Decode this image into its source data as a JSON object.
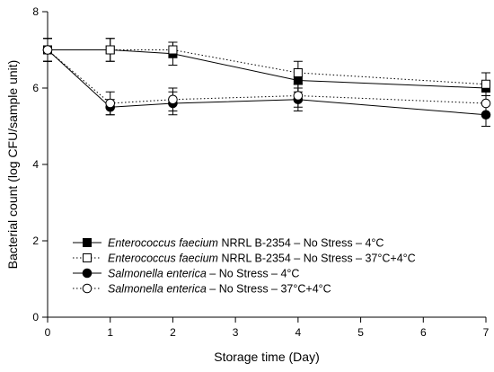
{
  "chart_data": {
    "type": "line",
    "xlabel": "Storage time (Day)",
    "ylabel": "Bacterial count (log CFU/sample unit)",
    "xlim": [
      0,
      7
    ],
    "ylim": [
      0,
      8
    ],
    "x_ticks": [
      "0",
      "1",
      "2",
      "3",
      "4",
      "5",
      "6",
      "7"
    ],
    "y_ticks": [
      "0",
      "2",
      "4",
      "6",
      "8"
    ],
    "grid": false,
    "legend_position": "bottom-left",
    "x": [
      0,
      1,
      2,
      4,
      7
    ],
    "series": [
      {
        "name": "Enterococcus faecium NRRL B-2354 – No Stress – 4°C",
        "label_italic": "Enterococcus faecium",
        "label_rest": " NRRL B-2354 – No Stress – 4°C",
        "marker": "square-filled",
        "line_style": "solid",
        "values": [
          7.0,
          7.0,
          6.9,
          6.2,
          6.0
        ],
        "errors": [
          0.3,
          0.3,
          0.3,
          0.3,
          0.2
        ]
      },
      {
        "name": "Enterococcus faecium NRRL B-2354 – No Stress – 37°C+4°C",
        "label_italic": "Enterococcus faecium",
        "label_rest": " NRRL B-2354 – No Stress – 37°C+4°C",
        "marker": "square-open",
        "line_style": "dotted",
        "values": [
          7.0,
          7.0,
          7.0,
          6.4,
          6.1
        ],
        "errors": [
          0.3,
          0.3,
          0.2,
          0.3,
          0.3
        ]
      },
      {
        "name": "Salmonella enterica – No Stress – 4°C",
        "label_italic": "Salmonella enterica",
        "label_rest": " – No Stress – 4°C",
        "marker": "circle-filled",
        "line_style": "solid",
        "values": [
          7.0,
          5.5,
          5.6,
          5.7,
          5.3
        ],
        "errors": [
          0.3,
          0.2,
          0.3,
          0.3,
          0.3
        ]
      },
      {
        "name": "Salmonella enterica – No Stress – 37°C+4°C",
        "label_italic": "Salmonella enterica",
        "label_rest": " – No Stress – 37°C+4°C",
        "marker": "circle-open",
        "line_style": "dotted",
        "values": [
          7.0,
          5.6,
          5.7,
          5.8,
          5.6
        ],
        "errors": [
          0.3,
          0.3,
          0.3,
          0.3,
          0.3
        ]
      }
    ]
  }
}
